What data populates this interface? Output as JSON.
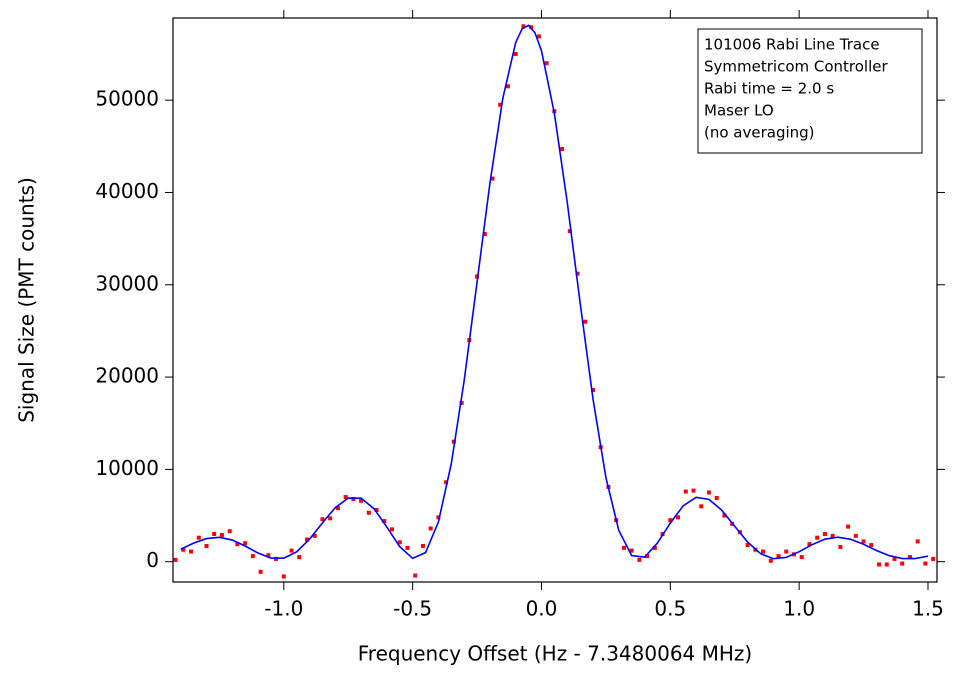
{
  "chart_data": {
    "type": "scatter",
    "x_label": "Frequency Offset (Hz - 7.3480064 MHz)",
    "y_label": "Signal Size (PMT counts)",
    "annotations": [
      "101006 Rabi Line Trace",
      "Symmetricom Controller",
      "Rabi time = 2.0 s",
      "Maser LO",
      "(no averaging)"
    ],
    "xlim": [
      -1.43,
      1.535
    ],
    "ylim": [
      -2200,
      58900
    ],
    "xticks": [
      {
        "value": -1.0,
        "label": "-1.0"
      },
      -0.5,
      {
        "value": 0,
        "label": "0.0"
      },
      0.5,
      {
        "value": 1.0,
        "label": "1.0"
      },
      1.5
    ],
    "yticks": [
      0,
      10000,
      20000,
      30000,
      40000,
      50000
    ],
    "series": [
      {
        "type": "scatter",
        "color": "#ff0000",
        "x": [
          -1.42,
          -1.39,
          -1.36,
          -1.33,
          -1.3,
          -1.27,
          -1.24,
          -1.21,
          -1.18,
          -1.15,
          -1.12,
          -1.09,
          -1.06,
          -1.03,
          -1.0,
          -0.97,
          -0.94,
          -0.91,
          -0.88,
          -0.85,
          -0.82,
          -0.79,
          -0.76,
          -0.73,
          -0.7,
          -0.67,
          -0.64,
          -0.61,
          -0.58,
          -0.55,
          -0.52,
          -0.49,
          -0.46,
          -0.43,
          -0.4,
          -0.37,
          -0.34,
          -0.31,
          -0.28,
          -0.25,
          -0.22,
          -0.19,
          -0.16,
          -0.13,
          -0.1,
          -0.07,
          -0.04,
          -0.01,
          0.02,
          0.05,
          0.08,
          0.11,
          0.14,
          0.17,
          0.2,
          0.23,
          0.26,
          0.29,
          0.32,
          0.35,
          0.38,
          0.41,
          0.44,
          0.47,
          0.5,
          0.53,
          0.56,
          0.59,
          0.62,
          0.65,
          0.68,
          0.71,
          0.74,
          0.77,
          0.8,
          0.83,
          0.86,
          0.89,
          0.92,
          0.95,
          0.98,
          1.01,
          1.04,
          1.07,
          1.1,
          1.13,
          1.16,
          1.19,
          1.22,
          1.25,
          1.28,
          1.31,
          1.34,
          1.37,
          1.4,
          1.43,
          1.46,
          1.49,
          1.52
        ],
        "values": [
          200,
          1300,
          1100,
          2600,
          1700,
          3000,
          2900,
          3300,
          1900,
          2000,
          600,
          -1100,
          700,
          300,
          -1600,
          1200,
          500,
          2400,
          2800,
          4600,
          4700,
          5800,
          7000,
          6800,
          6600,
          5300,
          5600,
          4400,
          3500,
          2100,
          1500,
          -1500,
          1700,
          3600,
          4800,
          8600,
          13000,
          17200,
          24000,
          30900,
          35500,
          41500,
          49500,
          51500,
          55000,
          58000,
          57900,
          56900,
          54000,
          48800,
          44700,
          35800,
          31200,
          26000,
          18600,
          12400,
          8100,
          4500,
          1500,
          1200,
          200,
          600,
          1500,
          3000,
          4500,
          4800,
          7600,
          7700,
          6000,
          7500,
          6900,
          5000,
          4100,
          3200,
          1800,
          1300,
          1100,
          100,
          600,
          1100,
          800,
          500,
          1900,
          2600,
          3000,
          2800,
          1600,
          3800,
          2800,
          2200,
          1800,
          -300,
          -300,
          300,
          -200,
          500,
          2200,
          -200,
          300
        ]
      },
      {
        "type": "line",
        "color": "#0000ff",
        "x": [
          -1.4,
          -1.35,
          -1.3,
          -1.25,
          -1.2,
          -1.15,
          -1.1,
          -1.05,
          -1.0,
          -0.95,
          -0.9,
          -0.85,
          -0.8,
          -0.75,
          -0.7,
          -0.65,
          -0.6,
          -0.55,
          -0.5,
          -0.45,
          -0.4,
          -0.35,
          -0.3,
          -0.25,
          -0.2,
          -0.15,
          -0.1,
          -0.075,
          -0.05,
          -0.025,
          0.0,
          0.05,
          0.1,
          0.15,
          0.2,
          0.25,
          0.3,
          0.35,
          0.4,
          0.45,
          0.5,
          0.55,
          0.6,
          0.65,
          0.7,
          0.75,
          0.8,
          0.85,
          0.9,
          0.95,
          1.0,
          1.05,
          1.1,
          1.15,
          1.2,
          1.25,
          1.3,
          1.35,
          1.4,
          1.45,
          1.5
        ],
        "values": [
          1352,
          2011,
          2504,
          2641,
          2346,
          1700,
          936,
          390,
          375,
          1069,
          2444,
          4202,
          5862,
          6889,
          6883,
          5739,
          3751,
          1620,
          360,
          980,
          4297,
          10613,
          19614,
          30275,
          41020,
          50199,
          56250,
          57727,
          58100,
          57273,
          55354,
          48573,
          38933,
          28050,
          17628,
          9120,
          3398,
          662,
          491,
          2018,
          4182,
          6051,
          6974,
          6756,
          5566,
          3838,
          2130,
          874,
          324,
          466,
          1084,
          1845,
          2442,
          2652,
          2428,
          1886,
          1217,
          648,
          337,
          340,
          600
        ]
      }
    ]
  }
}
